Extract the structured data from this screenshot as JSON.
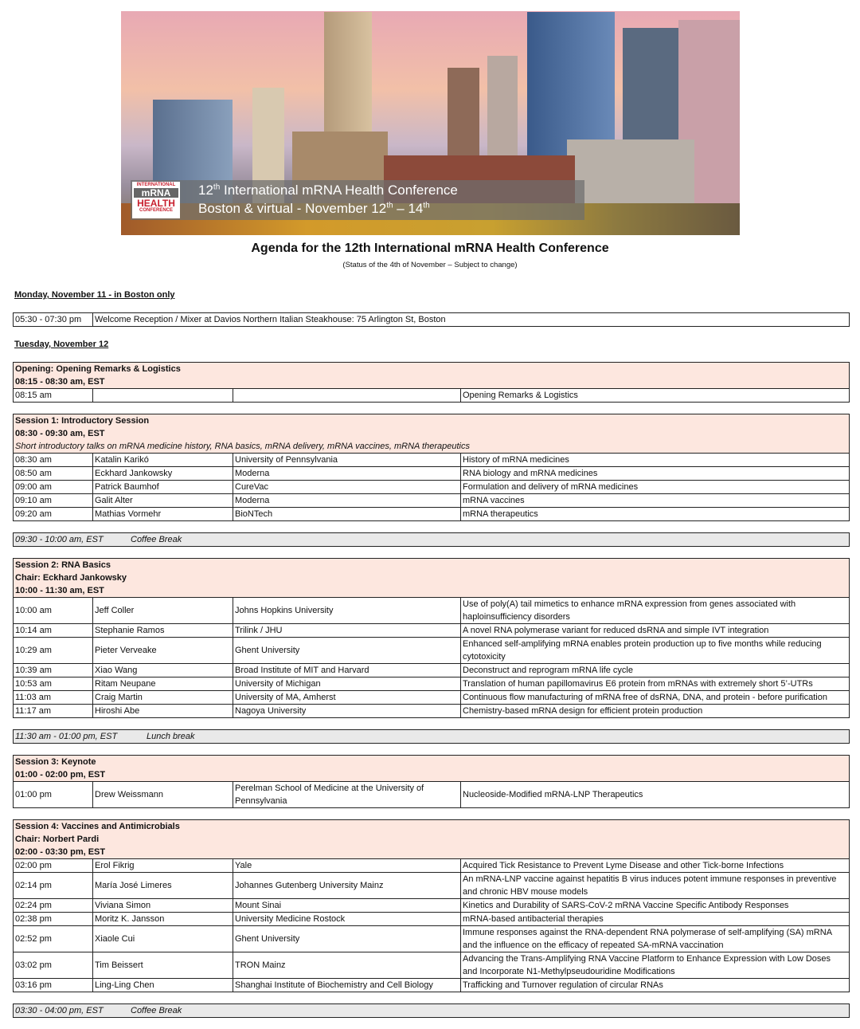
{
  "banner": {
    "logo": {
      "line1": "INTERNATIONAL",
      "line2": "mRNA",
      "line3": "HEALTH",
      "line4": "CONFERENCE"
    },
    "line1": {
      "pre": "12",
      "sup": "th",
      "post": " International mRNA Health Conference"
    },
    "line2": {
      "pre": "Boston & virtual - November 12",
      "sup1": "th",
      "mid": " – 14",
      "sup2": "th"
    }
  },
  "title": "Agenda for the 12th International mRNA Health Conference",
  "subtitle": "(Status of the 4th of November – Subject to change)",
  "colors": {
    "header_bg": "#fde7df",
    "break_bg": "#e9e9e9"
  },
  "days": [
    {
      "heading": "Monday, November 11 - in Boston only",
      "blocks": [
        {
          "type": "simple",
          "time": "05:30 - 07:30 pm",
          "text": "Welcome Reception / Mixer at Davios Northern Italian Steakhouse: 75 Arlington St, Boston"
        }
      ]
    },
    {
      "heading": "Tuesday, November 12",
      "blocks": [
        {
          "type": "session",
          "header": [
            {
              "text": "Opening: Opening Remarks & Logistics",
              "style": "b"
            },
            {
              "text": "08:15 - 08:30 am, EST",
              "style": "b"
            }
          ],
          "rows": [
            [
              "08:15 am",
              "",
              "",
              "Opening Remarks & Logistics"
            ]
          ]
        },
        {
          "type": "session",
          "header": [
            {
              "text": "Session 1: Introductory Session",
              "style": "b"
            },
            {
              "text": "08:30 - 09:30 am, EST",
              "style": "b"
            },
            {
              "text": "Short introductory talks on mRNA medicine history, RNA basics, mRNA delivery, mRNA vaccines, mRNA therapeutics",
              "style": "i"
            }
          ],
          "rows": [
            [
              "08:30 am",
              "Katalin Karikó",
              "University of Pennsylvania",
              "History of mRNA medicines"
            ],
            [
              "08:50 am",
              "Eckhard Jankowsky",
              "Moderna",
              "RNA biology and mRNA medicines"
            ],
            [
              "09:00 am",
              "Patrick Baumhof",
              "CureVac",
              "Formulation and delivery of mRNA medicines"
            ],
            [
              "09:10 am",
              "Galit Alter",
              "Moderna",
              "mRNA vaccines"
            ],
            [
              "09:20 am",
              "Mathias Vormehr",
              "BioNTech",
              "mRNA therapeutics"
            ]
          ]
        },
        {
          "type": "break",
          "time": "09:30 - 10:00 am, EST",
          "label": "Coffee Break"
        },
        {
          "type": "session",
          "header": [
            {
              "text": "Session 2: RNA Basics",
              "style": "b"
            },
            {
              "text": "Chair: Eckhard Jankowsky",
              "style": "b"
            },
            {
              "text": "10:00 - 11:30 am, EST",
              "style": "b"
            }
          ],
          "rows": [
            [
              "10:00 am",
              "Jeff Coller",
              "Johns Hopkins University",
              "Use of poly(A) tail mimetics to enhance mRNA expression from genes associated with haploinsufficiency disorders"
            ],
            [
              "10:14 am",
              "Stephanie Ramos",
              "Trilink / JHU",
              "A novel RNA polymerase variant for reduced dsRNA and simple IVT integration"
            ],
            [
              "10:29 am",
              "Pieter Verveake",
              "Ghent University",
              "Enhanced self-amplifying mRNA enables protein production up to five months while  reducing cytotoxicity"
            ],
            [
              "10:39 am",
              "Xiao Wang",
              "Broad Institute of MIT and Harvard",
              "Deconstruct and reprogram mRNA life cycle"
            ],
            [
              "10:53 am",
              "Ritam Neupane",
              "University of Michigan",
              "Translation of human papillomavirus E6 protein from mRNAs with extremely short 5’-UTRs"
            ],
            [
              "11:03 am",
              "Craig Martin",
              "University of MA, Amherst",
              "Continuous flow manufacturing of mRNA free of dsRNA, DNA, and protein - before purification"
            ],
            [
              "11:17 am",
              "Hiroshi Abe",
              "Nagoya University",
              "Chemistry-based mRNA design for efficient protein production"
            ]
          ]
        },
        {
          "type": "break",
          "time": "11:30 am - 01:00 pm, EST",
          "label": "Lunch break"
        },
        {
          "type": "session",
          "header": [
            {
              "text": "Session 3: Keynote",
              "style": "b"
            },
            {
              "text": "01:00 - 02:00 pm, EST",
              "style": "b"
            }
          ],
          "rows": [
            [
              "01:00 pm",
              "Drew Weissmann",
              "Perelman School of Medicine at the University of Pennsylvania",
              "Nucleoside-Modified mRNA-LNP Therapeutics"
            ]
          ]
        },
        {
          "type": "session",
          "header": [
            {
              "text": "Session 4: Vaccines and Antimicrobials",
              "style": "b"
            },
            {
              "text": "Chair: Norbert Pardi",
              "style": "b"
            },
            {
              "text": "02:00 - 03:30 pm, EST",
              "style": "b"
            }
          ],
          "rows": [
            [
              "02:00 pm",
              "Erol Fikrig",
              "Yale",
              "Acquired Tick Resistance to Prevent Lyme Disease and other Tick-borne Infections"
            ],
            [
              "02:14 pm",
              "María José Limeres",
              "Johannes Gutenberg University Mainz",
              "An mRNA-LNP vaccine against hepatitis B virus induces potent immune responses in preventive and chronic HBV mouse models"
            ],
            [
              "02:24 pm",
              "Viviana Simon",
              "Mount Sinai",
              "Kinetics and Durability of SARS-CoV-2 mRNA Vaccine Specific Antibody Responses"
            ],
            [
              "02:38 pm",
              "Moritz K. Jansson",
              "University Medicine Rostock",
              "mRNA-based antibacterial therapies"
            ],
            [
              "02:52 pm",
              "Xiaole Cui",
              "Ghent University",
              "Immune responses against the RNA-dependent RNA polymerase of self-amplifying (SA) mRNA and the influence on the efficacy of repeated SA-mRNA vaccination"
            ],
            [
              "03:02 pm",
              "Tim Beissert",
              "TRON Mainz",
              "Advancing the Trans-Amplifying RNA Vaccine Platform to Enhance Expression with Low Doses and Incorporate N1-Methylpseudouridine Modifications"
            ],
            [
              "03:16 pm",
              "Ling-Ling Chen",
              "Shanghai Institute of Biochemistry and Cell Biology",
              "Trafficking and Turnover regulation of circular RNAs"
            ]
          ]
        },
        {
          "type": "break",
          "time": "03:30 - 04:00 pm, EST",
          "label": "Coffee Break"
        }
      ]
    }
  ]
}
